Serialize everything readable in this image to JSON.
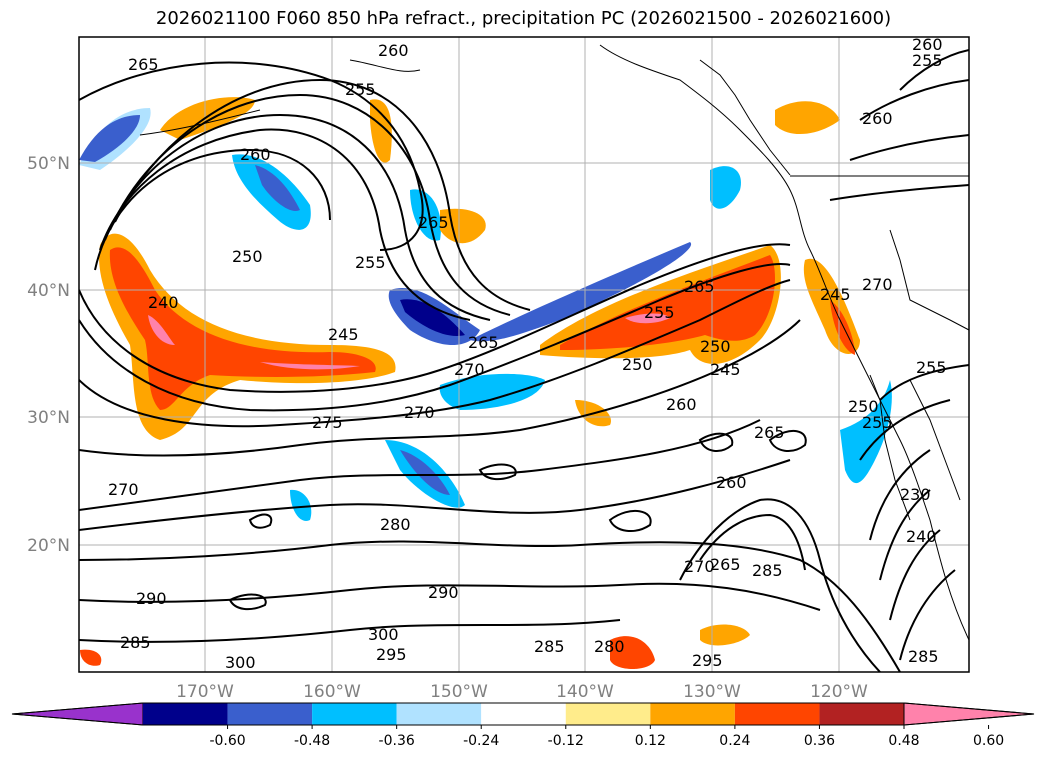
{
  "title": "2026021100 F060 850 hPa refract., precipitation PC (2026021500 - 2026021600)",
  "latitudes": [
    "50°N",
    "40°N",
    "30°N",
    "20°N"
  ],
  "longitudes": [
    "170°W",
    "160°W",
    "150°W",
    "140°W",
    "130°W",
    "120°W"
  ],
  "contour_labels": [
    "265",
    "260",
    "255",
    "260",
    "255",
    "260",
    "260",
    "265",
    "255",
    "250",
    "240",
    "245",
    "265",
    "265",
    "255",
    "250",
    "245",
    "250",
    "270",
    "260",
    "270",
    "275",
    "265",
    "260",
    "270",
    "280",
    "265",
    "285",
    "270",
    "290",
    "290",
    "285",
    "300",
    "300",
    "295",
    "285",
    "280",
    "295",
    "255",
    "250",
    "255",
    "245",
    "230",
    "240",
    "270",
    "285"
  ],
  "colorbar": {
    "ticks": [
      "-0.60",
      "-0.48",
      "-0.36",
      "-0.24",
      "-0.12",
      "0.12",
      "0.24",
      "0.36",
      "0.48",
      "0.60"
    ],
    "colors": [
      "#9932CC",
      "#00008B",
      "#3A5FCD",
      "#00BFFF",
      "#B0E2FF",
      "#FFFFFF",
      "#FFEC8B",
      "#FFA500",
      "#FF4500",
      "#B22222",
      "#FF82AB"
    ]
  }
}
